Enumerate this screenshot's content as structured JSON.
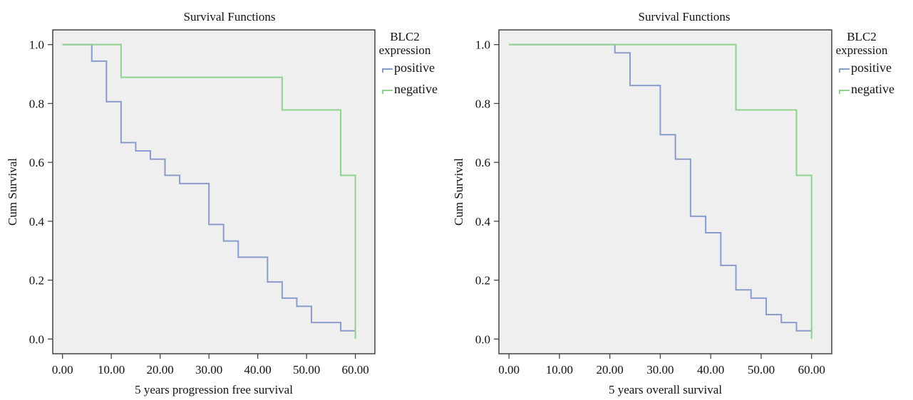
{
  "chart_data": [
    {
      "type": "line",
      "step": true,
      "title": "Survival Functions",
      "xlabel": "5 years progression free survival",
      "ylabel": "Cum Survival",
      "xlim": [
        -2,
        64
      ],
      "ylim": [
        -0.05,
        1.05
      ],
      "xticks": [
        0,
        10,
        20,
        30,
        40,
        50,
        60
      ],
      "xtick_labels": [
        "0.00",
        "10.00",
        "20.00",
        "30.00",
        "40.00",
        "50.00",
        "60.00"
      ],
      "yticks": [
        0,
        0.2,
        0.4,
        0.6,
        0.8,
        1.0
      ],
      "ytick_labels": [
        "0.0",
        "0.2",
        "0.4",
        "0.6",
        "0.8",
        "1.0"
      ],
      "grid": false,
      "legend": {
        "title_lines": [
          "BLC2",
          "expression"
        ],
        "placement": "right-outside"
      },
      "series": [
        {
          "name": "positive",
          "color": "#8a9ccc",
          "x": [
            0,
            6,
            9,
            12,
            15,
            18,
            21,
            24,
            30,
            33,
            36,
            42,
            45,
            48,
            51,
            57,
            60
          ],
          "y": [
            1.0,
            0.944,
            0.806,
            0.667,
            0.639,
            0.611,
            0.556,
            0.528,
            0.389,
            0.333,
            0.278,
            0.194,
            0.139,
            0.111,
            0.056,
            0.028,
            0.028
          ]
        },
        {
          "name": "negative",
          "color": "#8fd18f",
          "x": [
            0,
            12,
            45,
            57,
            60
          ],
          "y": [
            1.0,
            0.889,
            0.778,
            0.556,
            0.0
          ]
        }
      ]
    },
    {
      "type": "line",
      "step": true,
      "title": "Survival Functions",
      "xlabel": "5 years overall survival",
      "ylabel": "Cum Survival",
      "xlim": [
        -2,
        64
      ],
      "ylim": [
        -0.05,
        1.05
      ],
      "xticks": [
        0,
        10,
        20,
        30,
        40,
        50,
        60
      ],
      "xtick_labels": [
        "0.00",
        "10.00",
        "20.00",
        "30.00",
        "40.00",
        "50.00",
        "60.00"
      ],
      "yticks": [
        0,
        0.2,
        0.4,
        0.6,
        0.8,
        1.0
      ],
      "ytick_labels": [
        "0.0",
        "0.2",
        "0.4",
        "0.6",
        "0.8",
        "1.0"
      ],
      "grid": false,
      "legend": {
        "title_lines": [
          "BLC2",
          "expression"
        ],
        "placement": "right-outside"
      },
      "series": [
        {
          "name": "positive",
          "color": "#8a9ccc",
          "x": [
            0,
            21,
            24,
            30,
            33,
            36,
            39,
            42,
            45,
            48,
            51,
            54,
            57,
            60
          ],
          "y": [
            1.0,
            0.972,
            0.861,
            0.694,
            0.611,
            0.417,
            0.361,
            0.25,
            0.167,
            0.139,
            0.083,
            0.056,
            0.028,
            0.028
          ]
        },
        {
          "name": "negative",
          "color": "#8fd18f",
          "x": [
            0,
            45,
            57,
            60
          ],
          "y": [
            1.0,
            0.778,
            0.556,
            0.0
          ]
        }
      ]
    }
  ]
}
